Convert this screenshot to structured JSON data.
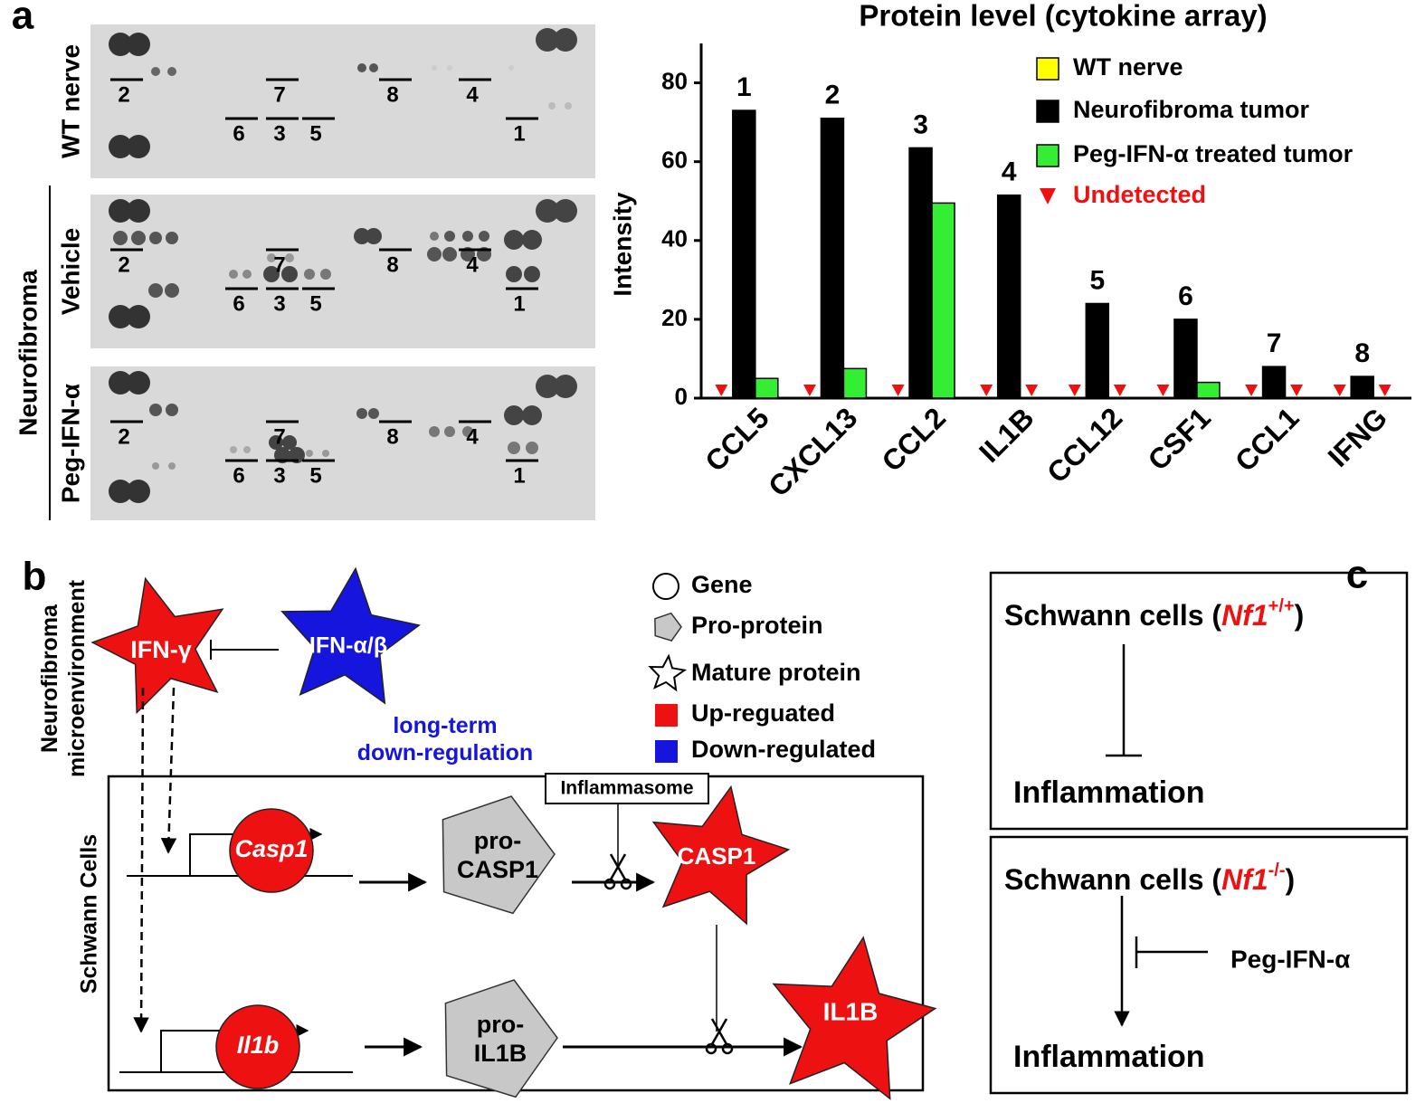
{
  "panel_labels": [
    "a",
    "b",
    "c"
  ],
  "blot": {
    "group_label": "Neurofibroma",
    "rows": [
      {
        "label": "WT nerve",
        "markers": [
          "2",
          "7",
          "8",
          "4",
          "6",
          "3",
          "5",
          "1"
        ]
      },
      {
        "label": "Vehicle",
        "markers": [
          "2",
          "7",
          "8",
          "4",
          "6",
          "3",
          "5",
          "1"
        ]
      },
      {
        "label": "Peg-IFN-α",
        "markers": [
          "2",
          "7",
          "8",
          "4",
          "6",
          "3",
          "5",
          "1"
        ]
      }
    ]
  },
  "chart_data": {
    "type": "bar",
    "title": "Protein level (cytokine array)",
    "ylabel": "Intensity",
    "categories": [
      "CCL5",
      "CXCL13",
      "CCL2",
      "IL1B",
      "CCL12",
      "CSF1",
      "CCL1",
      "IFNG"
    ],
    "series": [
      {
        "name": "WT nerve",
        "color": "#ffff00",
        "values": [
          null,
          null,
          null,
          null,
          null,
          null,
          null,
          null
        ]
      },
      {
        "name": "Neurofibroma tumor",
        "color": "#000000",
        "values": [
          73,
          71,
          63.5,
          51.5,
          24,
          20,
          8,
          5.5
        ],
        "bar_labels": [
          "1",
          "2",
          "3",
          "4",
          "5",
          "6",
          "7",
          "8"
        ]
      },
      {
        "name": "Peg-IFN-α treated tumor",
        "color": "#33ee33",
        "values": [
          5,
          7.5,
          49.5,
          null,
          null,
          4,
          null,
          null
        ]
      }
    ],
    "undetected": {
      "name": "Undetected",
      "color": "#ee1111"
    },
    "ylim": [
      0,
      90
    ],
    "yticks": [
      0,
      20,
      40,
      60,
      80
    ],
    "grid": false
  },
  "diagram_b": {
    "microenvironment_label": [
      "Neurofibroma",
      "microenvironment"
    ],
    "cell_label": "Schwann Cells",
    "ifn_gamma": "IFN-γ",
    "ifn_alpha_beta": "IFN-α/β",
    "long_term_note": [
      "long-term",
      "down-regulation"
    ],
    "casp1_gene": "Casp1",
    "il1b_gene": "Il1b",
    "pro_casp1": [
      "pro-",
      "CASP1"
    ],
    "pro_il1b": [
      "pro-",
      "IL1B"
    ],
    "inflammasome": "Inflammasome",
    "casp1_protein": "CASP1",
    "il1b_protein": "IL1B",
    "legend": [
      "Gene",
      "Pro-protein",
      "Mature protein",
      "Up-reguated",
      "Down-regulated"
    ]
  },
  "diagram_c": {
    "boxes": [
      {
        "prefix": "Schwann cells (",
        "gene": "Nf1",
        "genotype": "+/+",
        "suffix": ")",
        "outcome": "Inflammation"
      },
      {
        "prefix": "Schwann cells (",
        "gene": "Nf1",
        "genotype": "-/-",
        "suffix": ")",
        "outcome": "Inflammation"
      }
    ],
    "treatment": "Peg-IFN-α"
  }
}
